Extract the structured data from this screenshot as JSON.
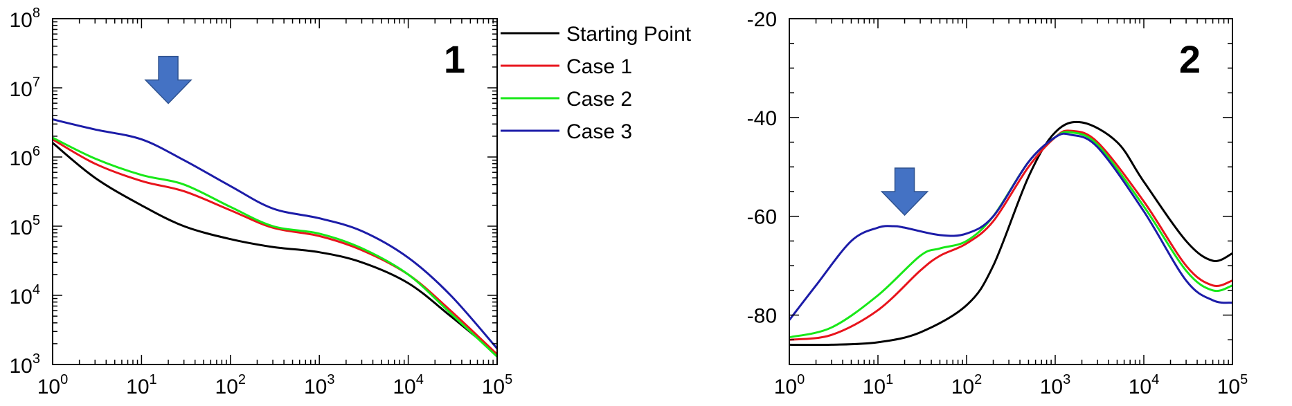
{
  "chart_data": [
    {
      "type": "line",
      "panel_label": "1",
      "x_scale": "log",
      "y_scale": "log",
      "xlim": [
        1,
        100000
      ],
      "ylim": [
        1000,
        100000000
      ],
      "x_ticks": [
        {
          "base": "10",
          "exp": "0",
          "value": 1
        },
        {
          "base": "10",
          "exp": "1",
          "value": 10
        },
        {
          "base": "10",
          "exp": "2",
          "value": 100
        },
        {
          "base": "10",
          "exp": "3",
          "value": 1000
        },
        {
          "base": "10",
          "exp": "4",
          "value": 10000
        },
        {
          "base": "10",
          "exp": "5",
          "value": 100000
        }
      ],
      "y_ticks": [
        {
          "base": "10",
          "exp": "3",
          "value": 1000
        },
        {
          "base": "10",
          "exp": "4",
          "value": 10000
        },
        {
          "base": "10",
          "exp": "5",
          "value": 100000
        },
        {
          "base": "10",
          "exp": "6",
          "value": 1000000
        },
        {
          "base": "10",
          "exp": "7",
          "value": 10000000
        },
        {
          "base": "10",
          "exp": "8",
          "value": 100000000
        }
      ],
      "arrow_at": {
        "x": 20,
        "y": 13000000
      },
      "series": [
        {
          "name": "Starting Point",
          "color": "#000000",
          "x": [
            1,
            3,
            10,
            30,
            100,
            300,
            1000,
            3000,
            10000,
            30000,
            100000
          ],
          "y": [
            1600000,
            500000,
            200000,
            100000,
            65000,
            50000,
            42000,
            30000,
            15000,
            5000,
            1400
          ]
        },
        {
          "name": "Case 1",
          "color": "#e8141c",
          "x": [
            1,
            3,
            10,
            30,
            100,
            300,
            1000,
            3000,
            10000,
            30000,
            100000
          ],
          "y": [
            1800000,
            800000,
            450000,
            320000,
            170000,
            95000,
            72000,
            45000,
            20000,
            6000,
            1400
          ]
        },
        {
          "name": "Case 2",
          "color": "#18e818",
          "x": [
            1,
            3,
            10,
            30,
            100,
            300,
            1000,
            3000,
            10000,
            30000,
            100000
          ],
          "y": [
            1900000,
            950000,
            550000,
            400000,
            190000,
            100000,
            78000,
            48000,
            20000,
            5500,
            1300
          ]
        },
        {
          "name": "Case 3",
          "color": "#1c1ca8",
          "x": [
            1,
            3,
            10,
            30,
            100,
            300,
            1000,
            3000,
            10000,
            30000,
            100000
          ],
          "y": [
            3500000,
            2500000,
            1800000,
            900000,
            380000,
            180000,
            130000,
            85000,
            35000,
            10000,
            1700
          ]
        }
      ]
    },
    {
      "type": "line",
      "panel_label": "2",
      "x_scale": "log",
      "y_scale": "linear",
      "xlim": [
        1,
        100000
      ],
      "ylim": [
        -90,
        -20
      ],
      "x_ticks": [
        {
          "base": "10",
          "exp": "0",
          "value": 1
        },
        {
          "base": "10",
          "exp": "1",
          "value": 10
        },
        {
          "base": "10",
          "exp": "2",
          "value": 100
        },
        {
          "base": "10",
          "exp": "3",
          "value": 1000
        },
        {
          "base": "10",
          "exp": "4",
          "value": 10000
        },
        {
          "base": "10",
          "exp": "5",
          "value": 100000
        }
      ],
      "y_ticks": [
        {
          "label": "-20",
          "value": -20
        },
        {
          "label": "-40",
          "value": -40
        },
        {
          "label": "-60",
          "value": -60
        },
        {
          "label": "-80",
          "value": -80
        }
      ],
      "arrow_at": {
        "x": 20,
        "y": -55
      },
      "series": [
        {
          "name": "Starting Point",
          "color": "#000000",
          "x": [
            1,
            3,
            10,
            30,
            100,
            200,
            500,
            1000,
            2000,
            5000,
            10000,
            30000,
            60000,
            100000
          ],
          "y": [
            -86,
            -86,
            -85.5,
            -83.5,
            -78,
            -70,
            -52,
            -43,
            -41,
            -45,
            -53,
            -65,
            -69,
            -67.5
          ]
        },
        {
          "name": "Case 1",
          "color": "#e8141c",
          "x": [
            1,
            3,
            10,
            30,
            50,
            100,
            200,
            500,
            1000,
            1500,
            3000,
            10000,
            30000,
            60000,
            100000
          ],
          "y": [
            -85,
            -84,
            -79,
            -71,
            -68,
            -65.5,
            -61,
            -50,
            -44,
            -42.7,
            -45,
            -57,
            -70,
            -74,
            -73
          ]
        },
        {
          "name": "Case 2",
          "color": "#18e818",
          "x": [
            1,
            3,
            10,
            30,
            50,
            100,
            200,
            500,
            1000,
            1500,
            3000,
            10000,
            30000,
            60000,
            100000
          ],
          "y": [
            -84.5,
            -82.5,
            -76,
            -68,
            -66.5,
            -65,
            -60,
            -49,
            -44,
            -43,
            -45.5,
            -58,
            -71,
            -75,
            -74
          ]
        },
        {
          "name": "Case 3",
          "color": "#1c1ca8",
          "x": [
            1,
            2,
            5,
            10,
            15,
            20,
            50,
            100,
            200,
            500,
            1000,
            1500,
            3000,
            10000,
            30000,
            60000,
            100000
          ],
          "y": [
            -81,
            -74,
            -65,
            -62.3,
            -62,
            -62.3,
            -63.8,
            -63.5,
            -60,
            -49,
            -44,
            -43.5,
            -46,
            -59,
            -73,
            -77,
            -77.5
          ]
        }
      ]
    }
  ]
}
